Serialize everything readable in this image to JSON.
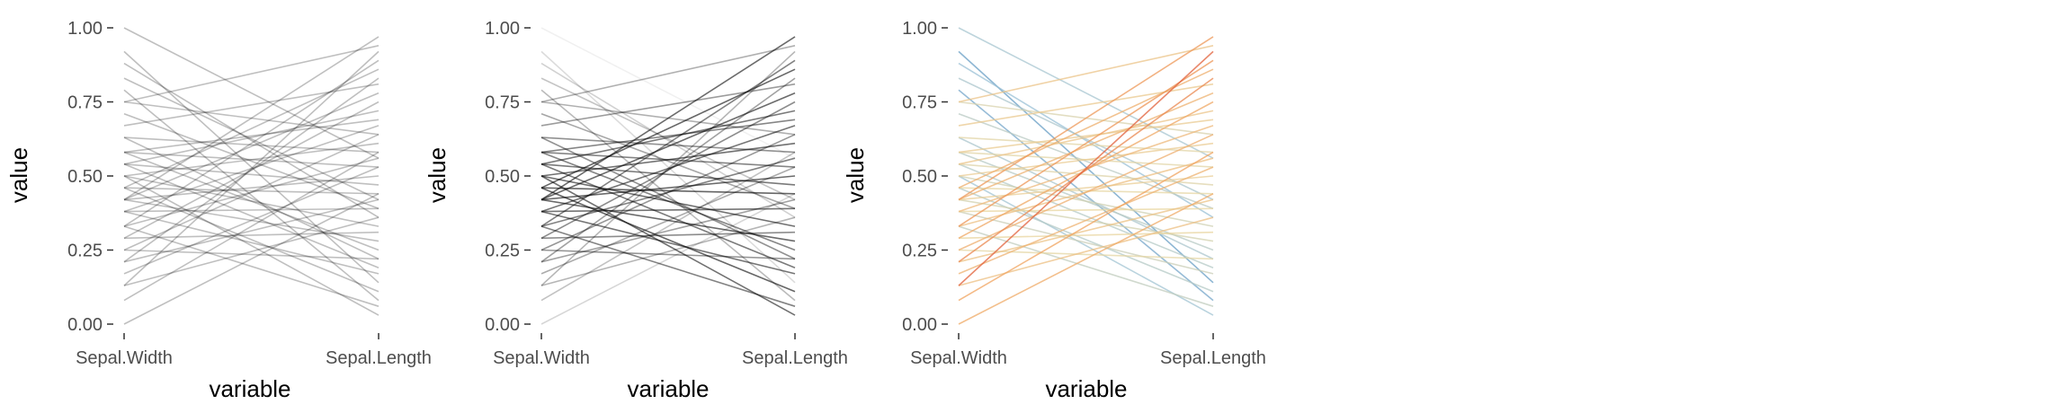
{
  "chart_data": [
    {
      "type": "line",
      "subtype": "parallel-coordinates",
      "xlabel": "variable",
      "ylabel": "value",
      "categories": [
        "Sepal.Width",
        "Sepal.Length"
      ],
      "ylim": [
        0,
        1
      ],
      "yticks": [
        "0.00",
        "0.25",
        "0.50",
        "0.75",
        "1.00"
      ],
      "grid": false,
      "legend": "none",
      "line_color": "#000000",
      "line_opacity": 0.25,
      "color_mode": "uniform",
      "series": [
        {
          "values": [
            1.0,
            0.56
          ]
        },
        {
          "values": [
            0.92,
            0.14
          ]
        },
        {
          "values": [
            0.88,
            0.36
          ]
        },
        {
          "values": [
            0.83,
            0.42
          ]
        },
        {
          "values": [
            0.79,
            0.08
          ]
        },
        {
          "values": [
            0.75,
            0.64
          ]
        },
        {
          "values": [
            0.75,
            0.94
          ]
        },
        {
          "values": [
            0.71,
            0.39
          ]
        },
        {
          "values": [
            0.67,
            0.81
          ]
        },
        {
          "values": [
            0.63,
            0.22
          ]
        },
        {
          "values": [
            0.63,
            0.58
          ]
        },
        {
          "values": [
            0.58,
            0.25
          ]
        },
        {
          "values": [
            0.58,
            0.53
          ]
        },
        {
          "values": [
            0.58,
            0.69
          ]
        },
        {
          "values": [
            0.54,
            0.19
          ]
        },
        {
          "values": [
            0.54,
            0.47
          ]
        },
        {
          "values": [
            0.54,
            0.72
          ]
        },
        {
          "values": [
            0.5,
            0.03
          ]
        },
        {
          "values": [
            0.5,
            0.33
          ]
        },
        {
          "values": [
            0.5,
            0.61
          ]
        },
        {
          "values": [
            0.46,
            0.11
          ]
        },
        {
          "values": [
            0.46,
            0.44
          ]
        },
        {
          "values": [
            0.46,
            0.86
          ]
        },
        {
          "values": [
            0.42,
            0.28
          ]
        },
        {
          "values": [
            0.42,
            0.5
          ]
        },
        {
          "values": [
            0.42,
            0.78
          ]
        },
        {
          "values": [
            0.42,
            0.97
          ]
        },
        {
          "values": [
            0.38,
            0.17
          ]
        },
        {
          "values": [
            0.38,
            0.39
          ]
        },
        {
          "values": [
            0.38,
            0.67
          ]
        },
        {
          "values": [
            0.33,
            0.06
          ]
        },
        {
          "values": [
            0.33,
            0.56
          ]
        },
        {
          "values": [
            0.33,
            0.89
          ]
        },
        {
          "values": [
            0.29,
            0.31
          ]
        },
        {
          "values": [
            0.29,
            0.75
          ]
        },
        {
          "values": [
            0.25,
            0.22
          ]
        },
        {
          "values": [
            0.25,
            0.64
          ]
        },
        {
          "values": [
            0.21,
            0.42
          ]
        },
        {
          "values": [
            0.21,
            0.83
          ]
        },
        {
          "values": [
            0.17,
            0.53
          ]
        },
        {
          "values": [
            0.13,
            0.36
          ]
        },
        {
          "values": [
            0.13,
            0.92
          ]
        },
        {
          "values": [
            0.08,
            0.58
          ]
        },
        {
          "values": [
            0.0,
            0.44
          ]
        }
      ]
    },
    {
      "type": "line",
      "subtype": "parallel-coordinates",
      "xlabel": "variable",
      "ylabel": "value",
      "categories": [
        "Sepal.Width",
        "Sepal.Length"
      ],
      "ylim": [
        0,
        1
      ],
      "yticks": [
        "0.00",
        "0.25",
        "0.50",
        "0.75",
        "1.00"
      ],
      "grid": false,
      "legend": "none",
      "line_color": "#000000",
      "color_mode": "alpha-by-value",
      "series": [
        {
          "values": [
            1.0,
            0.56
          ]
        },
        {
          "values": [
            0.92,
            0.14
          ]
        },
        {
          "values": [
            0.88,
            0.36
          ]
        },
        {
          "values": [
            0.83,
            0.42
          ]
        },
        {
          "values": [
            0.79,
            0.08
          ]
        },
        {
          "values": [
            0.75,
            0.64
          ]
        },
        {
          "values": [
            0.75,
            0.94
          ]
        },
        {
          "values": [
            0.71,
            0.39
          ]
        },
        {
          "values": [
            0.67,
            0.81
          ]
        },
        {
          "values": [
            0.63,
            0.22
          ]
        },
        {
          "values": [
            0.63,
            0.58
          ]
        },
        {
          "values": [
            0.58,
            0.25
          ]
        },
        {
          "values": [
            0.58,
            0.53
          ]
        },
        {
          "values": [
            0.58,
            0.69
          ]
        },
        {
          "values": [
            0.54,
            0.19
          ]
        },
        {
          "values": [
            0.54,
            0.47
          ]
        },
        {
          "values": [
            0.54,
            0.72
          ]
        },
        {
          "values": [
            0.5,
            0.03
          ]
        },
        {
          "values": [
            0.5,
            0.33
          ]
        },
        {
          "values": [
            0.5,
            0.61
          ]
        },
        {
          "values": [
            0.46,
            0.11
          ]
        },
        {
          "values": [
            0.46,
            0.44
          ]
        },
        {
          "values": [
            0.46,
            0.86
          ]
        },
        {
          "values": [
            0.42,
            0.28
          ]
        },
        {
          "values": [
            0.42,
            0.5
          ]
        },
        {
          "values": [
            0.42,
            0.78
          ]
        },
        {
          "values": [
            0.42,
            0.97
          ]
        },
        {
          "values": [
            0.38,
            0.17
          ]
        },
        {
          "values": [
            0.38,
            0.39
          ]
        },
        {
          "values": [
            0.38,
            0.67
          ]
        },
        {
          "values": [
            0.33,
            0.06
          ]
        },
        {
          "values": [
            0.33,
            0.56
          ]
        },
        {
          "values": [
            0.33,
            0.89
          ]
        },
        {
          "values": [
            0.29,
            0.31
          ]
        },
        {
          "values": [
            0.29,
            0.75
          ]
        },
        {
          "values": [
            0.25,
            0.22
          ]
        },
        {
          "values": [
            0.25,
            0.64
          ]
        },
        {
          "values": [
            0.21,
            0.42
          ]
        },
        {
          "values": [
            0.21,
            0.83
          ]
        },
        {
          "values": [
            0.17,
            0.53
          ]
        },
        {
          "values": [
            0.13,
            0.36
          ]
        },
        {
          "values": [
            0.13,
            0.92
          ]
        },
        {
          "values": [
            0.08,
            0.58
          ]
        },
        {
          "values": [
            0.0,
            0.44
          ]
        }
      ]
    },
    {
      "type": "line",
      "subtype": "parallel-coordinates",
      "xlabel": "variable",
      "ylabel": "value",
      "categories": [
        "Sepal.Width",
        "Sepal.Length"
      ],
      "ylim": [
        0,
        1
      ],
      "yticks": [
        "0.00",
        "0.25",
        "0.50",
        "0.75",
        "1.00"
      ],
      "grid": false,
      "legend": "none",
      "color_mode": "diverging-by-slope",
      "palette": [
        "#3b7fb6",
        "#9ec3d6",
        "#e8d6a0",
        "#f0a35e",
        "#d7301f"
      ],
      "series": [
        {
          "values": [
            1.0,
            0.56
          ]
        },
        {
          "values": [
            0.92,
            0.14
          ]
        },
        {
          "values": [
            0.88,
            0.36
          ]
        },
        {
          "values": [
            0.83,
            0.42
          ]
        },
        {
          "values": [
            0.79,
            0.08
          ]
        },
        {
          "values": [
            0.75,
            0.64
          ]
        },
        {
          "values": [
            0.75,
            0.94
          ]
        },
        {
          "values": [
            0.71,
            0.39
          ]
        },
        {
          "values": [
            0.67,
            0.81
          ]
        },
        {
          "values": [
            0.63,
            0.22
          ]
        },
        {
          "values": [
            0.63,
            0.58
          ]
        },
        {
          "values": [
            0.58,
            0.25
          ]
        },
        {
          "values": [
            0.58,
            0.53
          ]
        },
        {
          "values": [
            0.58,
            0.69
          ]
        },
        {
          "values": [
            0.54,
            0.19
          ]
        },
        {
          "values": [
            0.54,
            0.47
          ]
        },
        {
          "values": [
            0.54,
            0.72
          ]
        },
        {
          "values": [
            0.5,
            0.03
          ]
        },
        {
          "values": [
            0.5,
            0.33
          ]
        },
        {
          "values": [
            0.5,
            0.61
          ]
        },
        {
          "values": [
            0.46,
            0.11
          ]
        },
        {
          "values": [
            0.46,
            0.44
          ]
        },
        {
          "values": [
            0.46,
            0.86
          ]
        },
        {
          "values": [
            0.42,
            0.28
          ]
        },
        {
          "values": [
            0.42,
            0.5
          ]
        },
        {
          "values": [
            0.42,
            0.78
          ]
        },
        {
          "values": [
            0.42,
            0.97
          ]
        },
        {
          "values": [
            0.38,
            0.17
          ]
        },
        {
          "values": [
            0.38,
            0.39
          ]
        },
        {
          "values": [
            0.38,
            0.67
          ]
        },
        {
          "values": [
            0.33,
            0.06
          ]
        },
        {
          "values": [
            0.33,
            0.56
          ]
        },
        {
          "values": [
            0.33,
            0.89
          ]
        },
        {
          "values": [
            0.29,
            0.31
          ]
        },
        {
          "values": [
            0.29,
            0.75
          ]
        },
        {
          "values": [
            0.25,
            0.22
          ]
        },
        {
          "values": [
            0.25,
            0.64
          ]
        },
        {
          "values": [
            0.21,
            0.42
          ]
        },
        {
          "values": [
            0.21,
            0.83
          ]
        },
        {
          "values": [
            0.17,
            0.53
          ]
        },
        {
          "values": [
            0.13,
            0.36
          ]
        },
        {
          "values": [
            0.13,
            0.92
          ]
        },
        {
          "values": [
            0.08,
            0.58
          ]
        },
        {
          "values": [
            0.0,
            0.44
          ]
        }
      ]
    }
  ]
}
